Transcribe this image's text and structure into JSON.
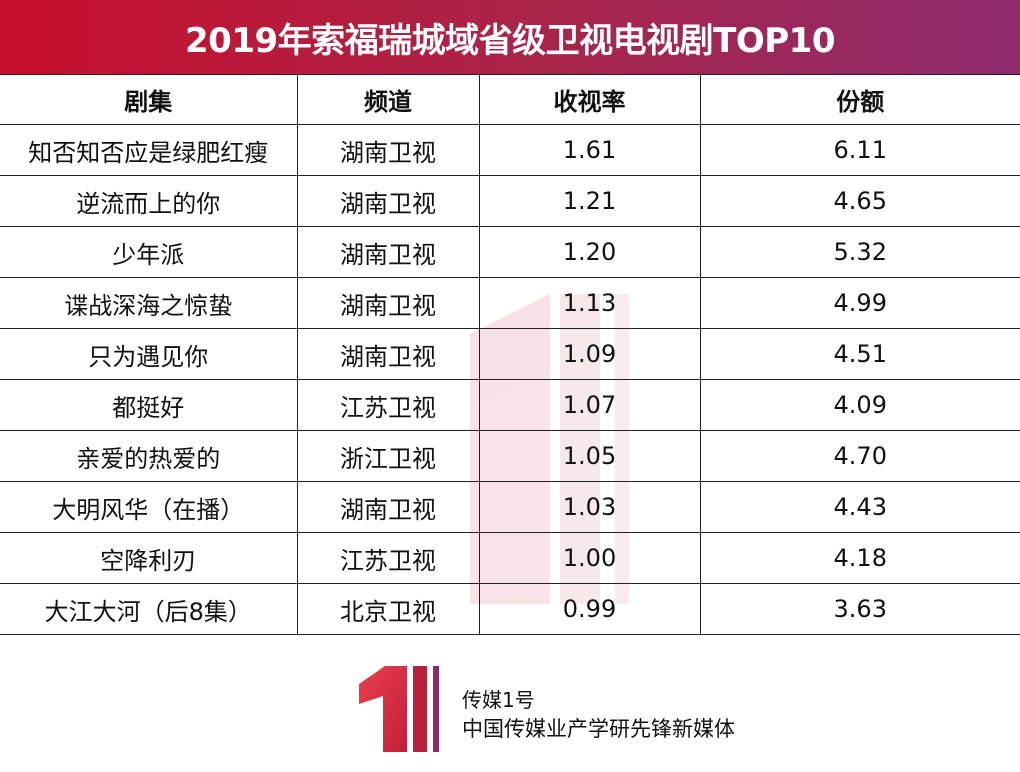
{
  "title": "2019年索福瑞城域省级卫视电视剧TOP10",
  "table": {
    "headers": [
      "剧集",
      "频道",
      "收视率",
      "份额"
    ],
    "rows": [
      [
        "知否知否应是绿肥红瘦",
        "湖南卫视",
        "1.61",
        "6.11"
      ],
      [
        "逆流而上的你",
        "湖南卫视",
        "1.21",
        "4.65"
      ],
      [
        "少年派",
        "湖南卫视",
        "1.20",
        "5.32"
      ],
      [
        "谍战深海之惊蛰",
        "湖南卫视",
        "1.13",
        "4.99"
      ],
      [
        "只为遇见你",
        "湖南卫视",
        "1.09",
        "4.51"
      ],
      [
        "都挺好",
        "江苏卫视",
        "1.07",
        "4.09"
      ],
      [
        "亲爱的热爱的",
        "浙江卫视",
        "1.05",
        "4.70"
      ],
      [
        "大明风华（在播）",
        "湖南卫视",
        "1.03",
        "4.43"
      ],
      [
        "空降利刃",
        "江苏卫视",
        "1.00",
        "4.18"
      ],
      [
        "大江大河（后8集）",
        "北京卫视",
        "0.99",
        "3.63"
      ]
    ]
  },
  "footer": {
    "brand": "传媒1号",
    "slogan": "中国传媒业产学研先锋新媒体",
    "logo_icon": "number-one-logo-icon"
  },
  "colors": {
    "title_start": "#c8102e",
    "title_end": "#8e2a6e",
    "logo_red": "#d9293c"
  }
}
